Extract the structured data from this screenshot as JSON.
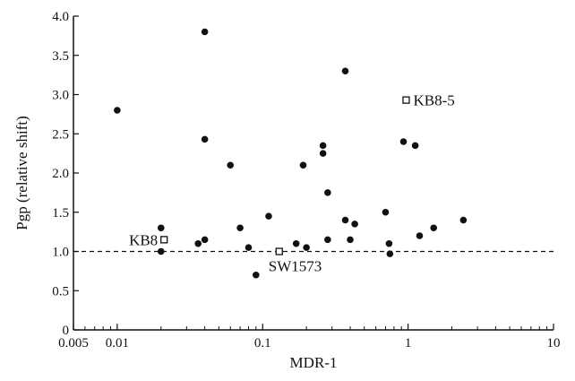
{
  "chart_data": {
    "type": "scatter",
    "xlabel": "MDR-1",
    "ylabel": "Pgp (relative shift)",
    "x_scale": "log",
    "xlim": [
      0.005,
      10
    ],
    "ylim": [
      0,
      4.0
    ],
    "x_ticks": [
      {
        "value": 0.005,
        "label": "0.005"
      },
      {
        "value": 0.01,
        "label": "0.01"
      },
      {
        "value": 0.1,
        "label": "0.1"
      },
      {
        "value": 1,
        "label": "1"
      },
      {
        "value": 10,
        "label": "10"
      }
    ],
    "y_ticks": [
      {
        "value": 0,
        "label": "0"
      },
      {
        "value": 0.5,
        "label": "0.5"
      },
      {
        "value": 1.0,
        "label": "1.0"
      },
      {
        "value": 1.5,
        "label": "1.5"
      },
      {
        "value": 2.0,
        "label": "2.0"
      },
      {
        "value": 2.5,
        "label": "2.5"
      },
      {
        "value": 3.0,
        "label": "3.0"
      },
      {
        "value": 3.5,
        "label": "3.5"
      },
      {
        "value": 4.0,
        "label": "4.0"
      }
    ],
    "reference_line": {
      "y": 1.0,
      "style": "dashed"
    },
    "grid": false,
    "series": [
      {
        "marker": "filled-circle",
        "color": "#111111",
        "points": [
          {
            "x": 0.01,
            "y": 2.8
          },
          {
            "x": 0.02,
            "y": 1.3
          },
          {
            "x": 0.02,
            "y": 1.0
          },
          {
            "x": 0.036,
            "y": 1.1
          },
          {
            "x": 0.04,
            "y": 1.15
          },
          {
            "x": 0.04,
            "y": 3.8
          },
          {
            "x": 0.04,
            "y": 2.43
          },
          {
            "x": 0.06,
            "y": 2.1
          },
          {
            "x": 0.07,
            "y": 1.3
          },
          {
            "x": 0.08,
            "y": 1.05
          },
          {
            "x": 0.09,
            "y": 0.7
          },
          {
            "x": 0.11,
            "y": 1.45
          },
          {
            "x": 0.17,
            "y": 1.1
          },
          {
            "x": 0.19,
            "y": 2.1
          },
          {
            "x": 0.2,
            "y": 1.05
          },
          {
            "x": 0.26,
            "y": 2.35
          },
          {
            "x": 0.26,
            "y": 2.25
          },
          {
            "x": 0.28,
            "y": 1.75
          },
          {
            "x": 0.28,
            "y": 1.15
          },
          {
            "x": 0.37,
            "y": 3.3
          },
          {
            "x": 0.37,
            "y": 1.4
          },
          {
            "x": 0.4,
            "y": 1.15
          },
          {
            "x": 0.43,
            "y": 1.35
          },
          {
            "x": 0.7,
            "y": 1.5
          },
          {
            "x": 0.74,
            "y": 1.1
          },
          {
            "x": 0.75,
            "y": 0.97
          },
          {
            "x": 0.93,
            "y": 2.4
          },
          {
            "x": 1.12,
            "y": 2.35
          },
          {
            "x": 1.2,
            "y": 1.2
          },
          {
            "x": 1.5,
            "y": 1.3
          },
          {
            "x": 2.4,
            "y": 1.4
          }
        ]
      },
      {
        "marker": "open-square",
        "color": "#111111",
        "points": [
          {
            "x": 0.021,
            "y": 1.15,
            "label": "KB8",
            "label_side": "left"
          },
          {
            "x": 0.13,
            "y": 1.0,
            "label": "SW1573",
            "label_side": "below"
          },
          {
            "x": 0.97,
            "y": 2.93,
            "label": "KB8-5",
            "label_side": "right"
          }
        ]
      }
    ]
  }
}
